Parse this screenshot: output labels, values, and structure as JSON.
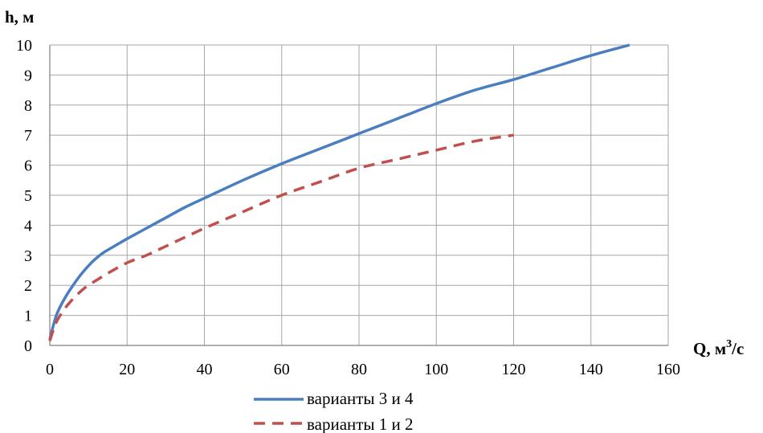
{
  "chart_data": {
    "type": "line",
    "ylabel": "h, м",
    "xlabel": "Q, м",
    "xlabel_sup": "3",
    "xlabel_suffix": "/с",
    "xlim": [
      0,
      160
    ],
    "ylim": [
      0,
      10
    ],
    "xticks": [
      0,
      20,
      40,
      60,
      80,
      100,
      120,
      140,
      160
    ],
    "yticks": [
      0,
      1,
      2,
      3,
      4,
      5,
      6,
      7,
      8,
      9,
      10
    ],
    "grid": true,
    "legend_position": "bottom",
    "series": [
      {
        "name": "варианты 3 и 4",
        "color": "#4a7ebf",
        "style": "solid",
        "points": [
          [
            0,
            0.2
          ],
          [
            1,
            0.7
          ],
          [
            2,
            1.1
          ],
          [
            4,
            1.6
          ],
          [
            6,
            2.0
          ],
          [
            8,
            2.35
          ],
          [
            10,
            2.65
          ],
          [
            12,
            2.9
          ],
          [
            14,
            3.1
          ],
          [
            16,
            3.25
          ],
          [
            18,
            3.4
          ],
          [
            20,
            3.55
          ],
          [
            25,
            3.9
          ],
          [
            30,
            4.25
          ],
          [
            35,
            4.6
          ],
          [
            40,
            4.9
          ],
          [
            50,
            5.5
          ],
          [
            60,
            6.05
          ],
          [
            70,
            6.55
          ],
          [
            80,
            7.05
          ],
          [
            90,
            7.55
          ],
          [
            100,
            8.05
          ],
          [
            110,
            8.5
          ],
          [
            120,
            8.85
          ],
          [
            130,
            9.25
          ],
          [
            140,
            9.65
          ],
          [
            150,
            10.0
          ]
        ]
      },
      {
        "name": "варианты 1 и 2",
        "color": "#c0504d",
        "style": "dashed",
        "points": [
          [
            0,
            0.15
          ],
          [
            1,
            0.55
          ],
          [
            2,
            0.85
          ],
          [
            4,
            1.25
          ],
          [
            6,
            1.55
          ],
          [
            8,
            1.8
          ],
          [
            10,
            2.0
          ],
          [
            15,
            2.4
          ],
          [
            20,
            2.75
          ],
          [
            25,
            3.0
          ],
          [
            30,
            3.3
          ],
          [
            40,
            3.9
          ],
          [
            50,
            4.45
          ],
          [
            60,
            5.0
          ],
          [
            70,
            5.45
          ],
          [
            80,
            5.9
          ],
          [
            90,
            6.2
          ],
          [
            100,
            6.5
          ],
          [
            110,
            6.8
          ],
          [
            120,
            7.0
          ]
        ]
      }
    ]
  }
}
